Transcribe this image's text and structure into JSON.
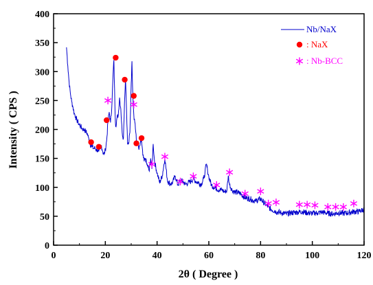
{
  "chart_data": {
    "type": "line",
    "xlabel": "2θ ( Degree )",
    "ylabel": "Intensity ( CPS )",
    "xlim": [
      0,
      120
    ],
    "ylim": [
      0,
      400
    ],
    "x_ticks": [
      0,
      20,
      40,
      60,
      80,
      100,
      120
    ],
    "y_ticks": [
      0,
      50,
      100,
      150,
      200,
      250,
      300,
      350,
      400
    ],
    "grid": false,
    "legend_position": "top-right",
    "colors": {
      "trace": "#0000cc",
      "nax": "#ff0000",
      "nbbcc": "#ff00ff"
    },
    "series": [
      {
        "name": "Nb/NaX",
        "marker": "line",
        "x": [
          5,
          5.5,
          6,
          6.5,
          7,
          7.5,
          8,
          8.5,
          9,
          9.5,
          10,
          10.5,
          11,
          11.5,
          12,
          12.5,
          13,
          13.5,
          14,
          14.5,
          15,
          15.5,
          16,
          16.5,
          17,
          17.5,
          18,
          18.5,
          19,
          19.5,
          20,
          20.5,
          21,
          21.5,
          22,
          22.5,
          23,
          23.3,
          23.7,
          24,
          24.5,
          25,
          25.5,
          26,
          26.5,
          27,
          27.4,
          27.8,
          28.2,
          28.6,
          29,
          29.5,
          30,
          30.3,
          30.6,
          31,
          31.5,
          32,
          32.5,
          33,
          33.5,
          34,
          34.5,
          35,
          35.5,
          36,
          36.5,
          37,
          37.5,
          38,
          38.5,
          39,
          40,
          41,
          42,
          43,
          44,
          45,
          46,
          47,
          48,
          49,
          50,
          51,
          52,
          53,
          54,
          55,
          56,
          57,
          58,
          58.5,
          59,
          59.5,
          60,
          61,
          62,
          63,
          64,
          65,
          66,
          67,
          67.5,
          68,
          69,
          70,
          72,
          74,
          76,
          78,
          80,
          82,
          84,
          86,
          88,
          90,
          92,
          94,
          96,
          98,
          100,
          102,
          104,
          106,
          108,
          110,
          112,
          114,
          116,
          118,
          120
        ],
        "y": [
          342,
          310,
          282,
          262,
          248,
          238,
          228,
          222,
          216,
          212,
          208,
          205,
          202,
          200,
          199,
          196,
          193,
          186,
          176,
          172,
          170,
          167,
          168,
          165,
          164,
          162,
          168,
          172,
          162,
          156,
          165,
          180,
          212,
          230,
          212,
          240,
          295,
          320,
          240,
          205,
          220,
          225,
          255,
          235,
          195,
          185,
          245,
          290,
          235,
          175,
          175,
          195,
          280,
          318,
          262,
          225,
          210,
          180,
          178,
          165,
          175,
          180,
          155,
          145,
          150,
          140,
          135,
          128,
          150,
          132,
          175,
          145,
          125,
          108,
          120,
          150,
          112,
          106,
          108,
          120,
          104,
          112,
          110,
          105,
          108,
          110,
          115,
          110,
          108,
          105,
          115,
          125,
          140,
          130,
          118,
          104,
          100,
          98,
          95,
          96,
          92,
          95,
          120,
          105,
          95,
          92,
          90,
          82,
          80,
          76,
          80,
          70,
          62,
          58,
          56,
          54,
          56,
          57,
          58,
          56,
          55,
          56,
          57,
          55,
          54,
          56,
          55,
          56,
          58,
          58,
          62
        ]
      },
      {
        "name": ": NaX",
        "marker": "circle",
        "x": [
          14.5,
          17.5,
          20.5,
          24,
          27.5,
          31,
          32,
          34
        ],
        "y": [
          178,
          170,
          216,
          324,
          286,
          258,
          176,
          185
        ]
      },
      {
        "name": ": Nb-BCC",
        "marker": "star",
        "x": [
          21,
          31,
          38,
          43,
          49,
          54,
          63,
          68,
          74,
          80,
          83,
          86,
          95,
          98,
          101,
          106,
          109,
          112,
          116
        ],
        "y": [
          250,
          243,
          140,
          153,
          110,
          119,
          104,
          126,
          89,
          93,
          72,
          74,
          70,
          70,
          69,
          66,
          66,
          66,
          72
        ]
      }
    ]
  }
}
